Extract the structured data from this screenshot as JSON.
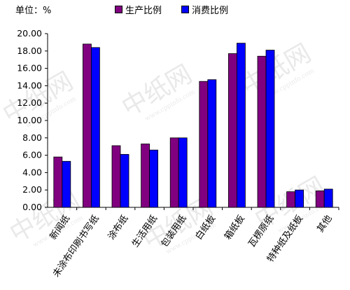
{
  "header": {
    "unit_label": "单位：%"
  },
  "legend": {
    "items": [
      {
        "label": "生产比例",
        "color": "#800080"
      },
      {
        "label": "消费比例",
        "color": "#0000FF"
      }
    ]
  },
  "watermark": {
    "text": "中纸网",
    "url": "www.cppinfo.com"
  },
  "chart_data": {
    "type": "bar",
    "categories": [
      "新闻纸",
      "未涂布印刷书写纸",
      "涂布纸",
      "生活用纸",
      "包装用纸",
      "白纸板",
      "箱纸板",
      "瓦楞原纸",
      "特种纸及纸板",
      "其他"
    ],
    "series": [
      {
        "name": "生产比例",
        "color": "#800080",
        "values": [
          5.8,
          18.8,
          7.1,
          7.3,
          8.0,
          14.5,
          17.7,
          17.4,
          1.8,
          1.9
        ]
      },
      {
        "name": "消费比例",
        "color": "#0000FF",
        "values": [
          5.3,
          18.4,
          6.1,
          6.6,
          8.0,
          14.7,
          18.9,
          18.1,
          2.0,
          2.1
        ]
      }
    ],
    "ylim": [
      0,
      20
    ],
    "yticks": [
      "0.00",
      "2.00",
      "4.00",
      "6.00",
      "8.00",
      "10.00",
      "12.00",
      "14.00",
      "16.00",
      "18.00",
      "20.00"
    ],
    "ytick_step": 2,
    "grid": false,
    "legend_position": "top-center",
    "xlabel": "",
    "ylabel": ""
  }
}
